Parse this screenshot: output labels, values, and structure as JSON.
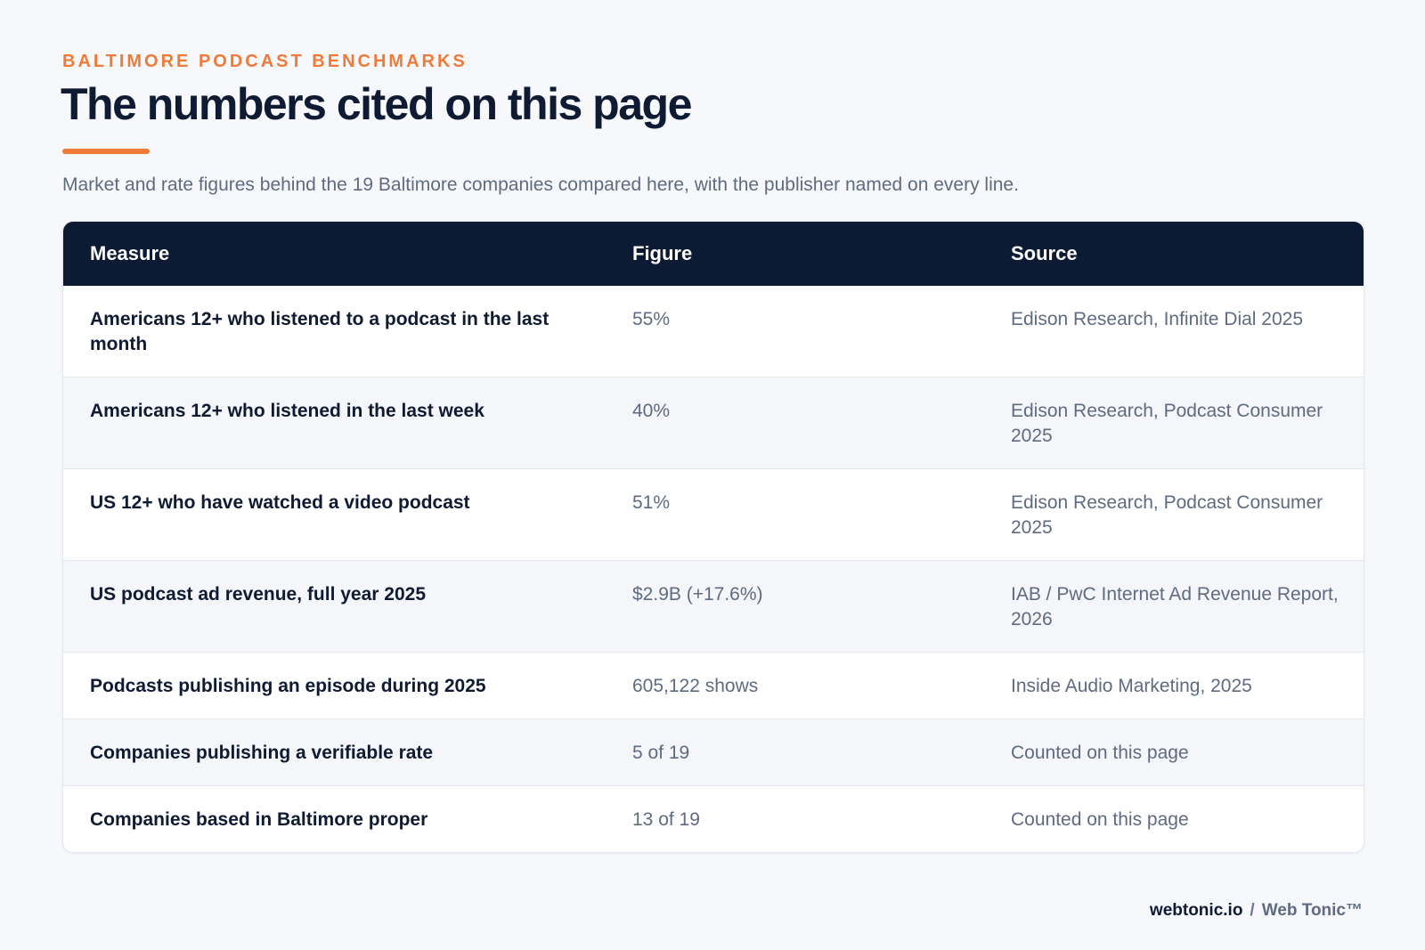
{
  "header": {
    "eyebrow": "BALTIMORE PODCAST BENCHMARKS",
    "title": "The numbers cited on this page",
    "subtitle": "Market and rate figures behind the 19 Baltimore companies compared here, with the publisher named on every line."
  },
  "table": {
    "columns": [
      "Measure",
      "Figure",
      "Source"
    ],
    "rows": [
      {
        "measure": "Americans 12+ who listened to a podcast in the last month",
        "figure": "55%",
        "source": "Edison Research, Infinite Dial 2025"
      },
      {
        "measure": "Americans 12+ who listened in the last week",
        "figure": "40%",
        "source": "Edison Research, Podcast Consumer 2025"
      },
      {
        "measure": "US 12+ who have watched a video podcast",
        "figure": "51%",
        "source": "Edison Research, Podcast Consumer 2025"
      },
      {
        "measure": "US podcast ad revenue, full year 2025",
        "figure": "$2.9B (+17.6%)",
        "source": "IAB / PwC Internet Ad Revenue Report, 2026"
      },
      {
        "measure": "Podcasts publishing an episode during 2025",
        "figure": "605,122 shows",
        "source": "Inside Audio Marketing, 2025"
      },
      {
        "measure": "Companies publishing a verifiable rate",
        "figure": "5 of 19",
        "source": "Counted on this page"
      },
      {
        "measure": "Companies based in Baltimore proper",
        "figure": "13 of 19",
        "source": "Counted on this page"
      }
    ]
  },
  "footer": {
    "domain": "webtonic.io",
    "separator": "/",
    "brand": "Web Tonic™"
  },
  "colors": {
    "accent": "#f07a3a",
    "header_bg": "#0c1a33",
    "text_dark": "#0f1b33",
    "text_muted": "#5e6b80",
    "page_bg": "#f6f8fb"
  }
}
